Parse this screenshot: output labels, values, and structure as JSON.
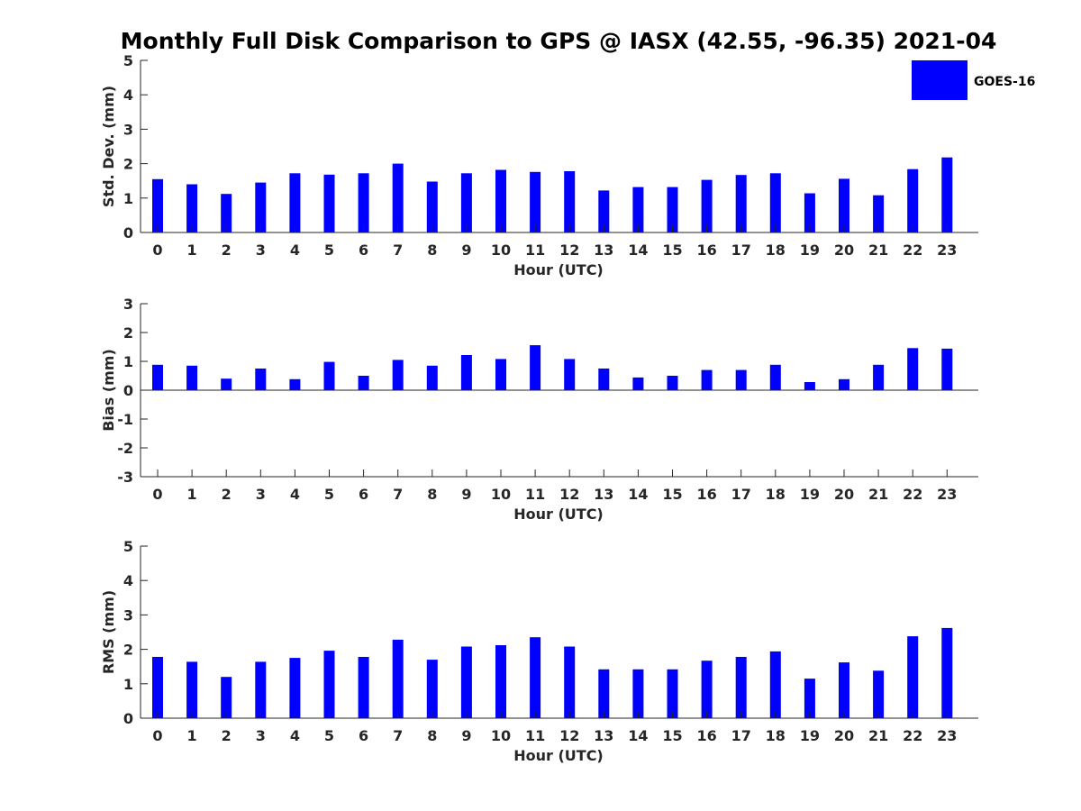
{
  "chart_data": {
    "type": "bar",
    "title": "Monthly Full Disk Comparison to GPS @ IASX (42.55, -96.35) 2021-04",
    "legend": {
      "label": "GOES-16",
      "placement": "top-right"
    },
    "colors": {
      "bar": "#0000ff",
      "axis": "#262626"
    },
    "grid": false,
    "categories": [
      "0",
      "1",
      "2",
      "3",
      "4",
      "5",
      "6",
      "7",
      "8",
      "9",
      "10",
      "11",
      "12",
      "13",
      "14",
      "15",
      "16",
      "17",
      "18",
      "19",
      "20",
      "21",
      "22",
      "23"
    ],
    "panels": [
      {
        "ylabel": "Std. Dev. (mm)",
        "xlabel": "Hour (UTC)",
        "ylim": [
          0,
          5
        ],
        "yticks": [
          "0",
          "1",
          "2",
          "3",
          "4",
          "5"
        ],
        "series": [
          {
            "name": "GOES-16",
            "values": [
              1.55,
              1.4,
              1.12,
              1.45,
              1.72,
              1.68,
              1.72,
              2.0,
              1.48,
              1.72,
              1.82,
              1.76,
              1.78,
              1.22,
              1.32,
              1.32,
              1.53,
              1.67,
              1.72,
              1.14,
              1.56,
              1.08,
              1.84,
              2.18
            ]
          }
        ]
      },
      {
        "ylabel": "Bias (mm)",
        "xlabel": "Hour (UTC)",
        "ylim": [
          -3,
          3
        ],
        "yticks": [
          "-3",
          "-2",
          "-1",
          "0",
          "1",
          "2",
          "3"
        ],
        "series": [
          {
            "name": "GOES-16",
            "values": [
              0.88,
              0.85,
              0.4,
              0.75,
              0.38,
              0.98,
              0.5,
              1.05,
              0.85,
              1.22,
              1.08,
              1.56,
              1.08,
              0.75,
              0.44,
              0.5,
              0.7,
              0.7,
              0.88,
              0.28,
              0.38,
              0.88,
              1.46,
              1.44
            ]
          }
        ]
      },
      {
        "ylabel": "RMS (mm)",
        "xlabel": "Hour (UTC)",
        "ylim": [
          0,
          5
        ],
        "yticks": [
          "0",
          "1",
          "2",
          "3",
          "4",
          "5"
        ],
        "series": [
          {
            "name": "GOES-16",
            "values": [
              1.78,
              1.64,
              1.2,
              1.64,
              1.75,
              1.96,
              1.78,
              2.28,
              1.7,
              2.08,
              2.12,
              2.35,
              2.08,
              1.42,
              1.42,
              1.42,
              1.67,
              1.78,
              1.94,
              1.15,
              1.62,
              1.38,
              2.38,
              2.62
            ]
          }
        ]
      }
    ]
  }
}
